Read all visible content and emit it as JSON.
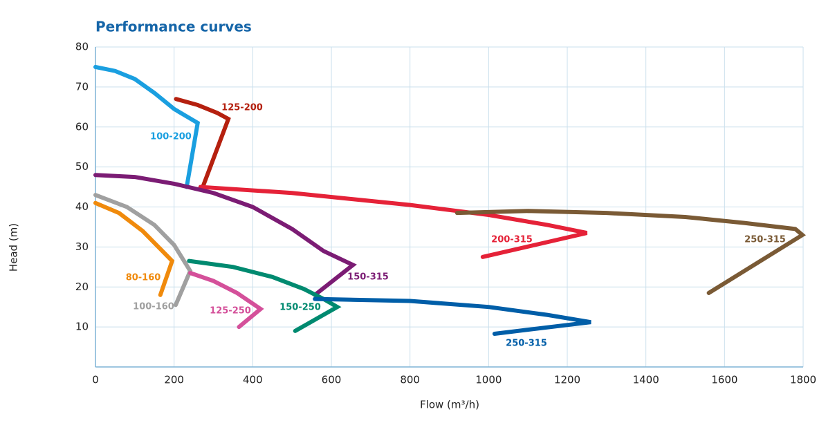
{
  "chart_data": {
    "type": "line",
    "title": "Performance curves",
    "x_label": "Flow (m³/h)",
    "y_label": "Head (m)",
    "xlim": [
      0,
      1800
    ],
    "ylim": [
      0,
      80
    ],
    "xticks": [
      0,
      200,
      400,
      600,
      800,
      1000,
      1200,
      1400,
      1600,
      1800
    ],
    "yticks": [
      10,
      20,
      30,
      40,
      50,
      60,
      70,
      80
    ],
    "grid": true,
    "series": [
      {
        "name": "100-200",
        "color": "#1a9fe0",
        "x": [
          0,
          50,
          100,
          150,
          200,
          260,
          232
        ],
        "values": [
          75,
          74,
          72,
          68.5,
          64.5,
          61,
          45
        ]
      },
      {
        "name": "125-200",
        "color": "#b5200f",
        "x": [
          205,
          260,
          310,
          338,
          271
        ],
        "values": [
          67,
          65.5,
          63.5,
          62,
          44.5
        ]
      },
      {
        "name": "200-315",
        "color": "#e52238",
        "x": [
          267,
          500,
          800,
          1000,
          1150,
          1250,
          985
        ],
        "values": [
          45,
          43.5,
          40.5,
          38,
          35.5,
          33.5,
          27.5
        ]
      },
      {
        "name": "150-315",
        "color": "#7b1c74",
        "x": [
          0,
          100,
          200,
          300,
          400,
          500,
          580,
          655,
          558
        ],
        "values": [
          48,
          47.5,
          45.8,
          43.5,
          40,
          34.5,
          29,
          25.5,
          18
        ]
      },
      {
        "name": "250-315",
        "color": "#7a5a35",
        "x": [
          920,
          1100,
          1300,
          1500,
          1650,
          1780,
          1798,
          1560
        ],
        "values": [
          38.5,
          39,
          38.5,
          37.5,
          36,
          34.5,
          33,
          18.5
        ]
      },
      {
        "name": "80-160",
        "color": "#f08a0c",
        "x": [
          0,
          60,
          120,
          170,
          195,
          165
        ],
        "values": [
          41,
          38.5,
          34,
          29,
          26.5,
          18
        ]
      },
      {
        "name": "100-160",
        "color": "#a0a0a0",
        "x": [
          0,
          80,
          150,
          200,
          241,
          204
        ],
        "values": [
          43,
          40,
          35.5,
          30.5,
          24,
          15.5
        ]
      },
      {
        "name": "125-250",
        "color": "#d4509a",
        "x": [
          241,
          300,
          360,
          420,
          365
        ],
        "values": [
          23.5,
          21.5,
          18.5,
          14.5,
          10
        ]
      },
      {
        "name": "150-250",
        "color": "#008a70",
        "x": [
          238,
          350,
          450,
          530,
          580,
          615,
          508
        ],
        "values": [
          26.5,
          25,
          22.5,
          19.5,
          17,
          15,
          9
        ]
      },
      {
        "name": "250-315",
        "color": "#005ea8",
        "x": [
          558,
          800,
          1000,
          1150,
          1260,
          1015
        ],
        "values": [
          17,
          16.5,
          15,
          13,
          11.2,
          8.3
        ]
      }
    ]
  }
}
